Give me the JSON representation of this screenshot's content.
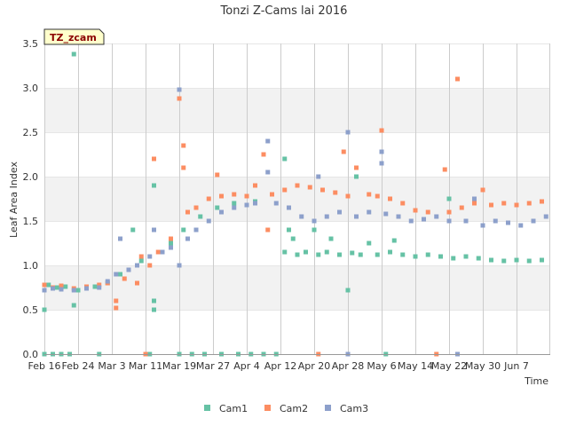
{
  "chart_data": {
    "type": "scatter",
    "title": "Tonzi Z-Cams lai 2016",
    "badge": "TZ_zcam",
    "xlabel": "Time",
    "ylabel": "Leaf Area Index",
    "ylim": [
      0,
      3.5
    ],
    "yticks": [
      "0.0",
      "0.5",
      "1.0",
      "1.5",
      "2.0",
      "2.5",
      "3.0",
      "3.5"
    ],
    "xlim": [
      "2016-02-16",
      "2016-06-15"
    ],
    "xticks": [
      {
        "label": "Feb 16",
        "date": "2016-02-16"
      },
      {
        "label": "Feb 24",
        "date": "2016-02-24"
      },
      {
        "label": "Mar 3",
        "date": "2016-03-03"
      },
      {
        "label": "Mar 11",
        "date": "2016-03-11"
      },
      {
        "label": "Mar 19",
        "date": "2016-03-19"
      },
      {
        "label": "Mar 27",
        "date": "2016-03-27"
      },
      {
        "label": "Apr 4",
        "date": "2016-04-04"
      },
      {
        "label": "Apr 12",
        "date": "2016-04-12"
      },
      {
        "label": "Apr 20",
        "date": "2016-04-20"
      },
      {
        "label": "Apr 28",
        "date": "2016-04-28"
      },
      {
        "label": "May 6",
        "date": "2016-05-06"
      },
      {
        "label": "May 14",
        "date": "2016-05-14"
      },
      {
        "label": "May 22",
        "date": "2016-05-22"
      },
      {
        "label": "May 30",
        "date": "2016-05-30"
      },
      {
        "label": "Jun 7",
        "date": "2016-06-07"
      }
    ],
    "grid": true,
    "legend_position": "bottom",
    "series": [
      {
        "name": "Cam1",
        "color": "#66c2a5",
        "points": [
          [
            "2016-02-16",
            0.0
          ],
          [
            "2016-02-16",
            0.5
          ],
          [
            "2016-02-17",
            0.78
          ],
          [
            "2016-02-18",
            0.0
          ],
          [
            "2016-02-19",
            0.75
          ],
          [
            "2016-02-20",
            0.0
          ],
          [
            "2016-02-21",
            0.76
          ],
          [
            "2016-02-22",
            0.0
          ],
          [
            "2016-02-23",
            3.38
          ],
          [
            "2016-02-23",
            0.55
          ],
          [
            "2016-02-24",
            0.72
          ],
          [
            "2016-02-26",
            0.74
          ],
          [
            "2016-02-28",
            0.76
          ],
          [
            "2016-02-29",
            0.0
          ],
          [
            "2016-03-02",
            0.8
          ],
          [
            "2016-03-05",
            0.9
          ],
          [
            "2016-03-08",
            1.4
          ],
          [
            "2016-03-10",
            1.05
          ],
          [
            "2016-03-11",
            0.0
          ],
          [
            "2016-03-12",
            0.0
          ],
          [
            "2016-03-13",
            1.9
          ],
          [
            "2016-03-13",
            0.5
          ],
          [
            "2016-03-13",
            0.6
          ],
          [
            "2016-03-15",
            1.15
          ],
          [
            "2016-03-17",
            1.25
          ],
          [
            "2016-03-19",
            0.0
          ],
          [
            "2016-03-20",
            1.4
          ],
          [
            "2016-03-22",
            0.0
          ],
          [
            "2016-03-24",
            1.55
          ],
          [
            "2016-03-25",
            0.0
          ],
          [
            "2016-03-28",
            1.65
          ],
          [
            "2016-03-29",
            0.0
          ],
          [
            "2016-04-01",
            1.7
          ],
          [
            "2016-04-02",
            0.0
          ],
          [
            "2016-04-05",
            0.0
          ],
          [
            "2016-04-06",
            1.72
          ],
          [
            "2016-04-08",
            0.0
          ],
          [
            "2016-04-11",
            0.0
          ],
          [
            "2016-04-13",
            2.2
          ],
          [
            "2016-04-13",
            1.15
          ],
          [
            "2016-04-14",
            1.4
          ],
          [
            "2016-04-15",
            1.3
          ],
          [
            "2016-04-16",
            1.12
          ],
          [
            "2016-04-18",
            1.15
          ],
          [
            "2016-04-20",
            1.4
          ],
          [
            "2016-04-21",
            1.12
          ],
          [
            "2016-04-23",
            1.15
          ],
          [
            "2016-04-24",
            1.3
          ],
          [
            "2016-04-26",
            1.12
          ],
          [
            "2016-04-28",
            0.72
          ],
          [
            "2016-04-29",
            1.14
          ],
          [
            "2016-04-30",
            2.0
          ],
          [
            "2016-05-01",
            1.12
          ],
          [
            "2016-05-03",
            1.25
          ],
          [
            "2016-05-05",
            1.12
          ],
          [
            "2016-05-07",
            0.0
          ],
          [
            "2016-05-08",
            1.15
          ],
          [
            "2016-05-09",
            1.28
          ],
          [
            "2016-05-11",
            1.12
          ],
          [
            "2016-05-14",
            1.1
          ],
          [
            "2016-05-17",
            1.12
          ],
          [
            "2016-05-20",
            1.1
          ],
          [
            "2016-05-22",
            1.75
          ],
          [
            "2016-05-23",
            1.08
          ],
          [
            "2016-05-26",
            1.1
          ],
          [
            "2016-05-29",
            1.08
          ],
          [
            "2016-06-01",
            1.06
          ],
          [
            "2016-06-04",
            1.05
          ],
          [
            "2016-06-07",
            1.06
          ],
          [
            "2016-06-10",
            1.05
          ],
          [
            "2016-06-13",
            1.06
          ]
        ]
      },
      {
        "name": "Cam2",
        "color": "#fc8d62",
        "points": [
          [
            "2016-02-16",
            0.78
          ],
          [
            "2016-02-18",
            0.75
          ],
          [
            "2016-02-20",
            0.77
          ],
          [
            "2016-02-23",
            0.74
          ],
          [
            "2016-02-26",
            0.76
          ],
          [
            "2016-02-29",
            0.78
          ],
          [
            "2016-03-02",
            0.8
          ],
          [
            "2016-03-04",
            0.6
          ],
          [
            "2016-03-04",
            0.52
          ],
          [
            "2016-03-06",
            0.85
          ],
          [
            "2016-03-09",
            0.8
          ],
          [
            "2016-03-10",
            1.1
          ],
          [
            "2016-03-11",
            0.0
          ],
          [
            "2016-03-12",
            1.0
          ],
          [
            "2016-03-13",
            2.2
          ],
          [
            "2016-03-14",
            1.15
          ],
          [
            "2016-03-17",
            1.3
          ],
          [
            "2016-03-19",
            2.88
          ],
          [
            "2016-03-20",
            2.35
          ],
          [
            "2016-03-20",
            2.1
          ],
          [
            "2016-03-21",
            1.6
          ],
          [
            "2016-03-23",
            1.65
          ],
          [
            "2016-03-26",
            1.75
          ],
          [
            "2016-03-28",
            2.02
          ],
          [
            "2016-03-29",
            1.78
          ],
          [
            "2016-04-01",
            1.8
          ],
          [
            "2016-04-04",
            1.78
          ],
          [
            "2016-04-06",
            1.9
          ],
          [
            "2016-04-08",
            2.25
          ],
          [
            "2016-04-09",
            1.4
          ],
          [
            "2016-04-10",
            1.8
          ],
          [
            "2016-04-13",
            1.85
          ],
          [
            "2016-04-16",
            1.9
          ],
          [
            "2016-04-19",
            1.88
          ],
          [
            "2016-04-21",
            0.0
          ],
          [
            "2016-04-22",
            1.85
          ],
          [
            "2016-04-25",
            1.82
          ],
          [
            "2016-04-27",
            2.28
          ],
          [
            "2016-04-28",
            1.78
          ],
          [
            "2016-04-30",
            2.1
          ],
          [
            "2016-05-03",
            1.8
          ],
          [
            "2016-05-05",
            1.78
          ],
          [
            "2016-05-06",
            2.52
          ],
          [
            "2016-05-08",
            1.75
          ],
          [
            "2016-05-11",
            1.7
          ],
          [
            "2016-05-14",
            1.62
          ],
          [
            "2016-05-17",
            1.6
          ],
          [
            "2016-05-19",
            0.0
          ],
          [
            "2016-05-21",
            2.08
          ],
          [
            "2016-05-22",
            1.6
          ],
          [
            "2016-05-24",
            3.1
          ],
          [
            "2016-05-25",
            1.65
          ],
          [
            "2016-05-28",
            1.7
          ],
          [
            "2016-05-30",
            1.85
          ],
          [
            "2016-06-01",
            1.68
          ],
          [
            "2016-06-04",
            1.7
          ],
          [
            "2016-06-07",
            1.68
          ],
          [
            "2016-06-10",
            1.7
          ],
          [
            "2016-06-13",
            1.72
          ]
        ]
      },
      {
        "name": "Cam3",
        "color": "#8da0cb",
        "points": [
          [
            "2016-02-16",
            0.72
          ],
          [
            "2016-02-18",
            0.74
          ],
          [
            "2016-02-20",
            0.73
          ],
          [
            "2016-02-23",
            0.72
          ],
          [
            "2016-02-26",
            0.74
          ],
          [
            "2016-02-29",
            0.75
          ],
          [
            "2016-03-02",
            0.82
          ],
          [
            "2016-03-04",
            0.9
          ],
          [
            "2016-03-05",
            1.3
          ],
          [
            "2016-03-07",
            0.95
          ],
          [
            "2016-03-09",
            1.0
          ],
          [
            "2016-03-12",
            1.1
          ],
          [
            "2016-03-13",
            1.4
          ],
          [
            "2016-03-15",
            1.15
          ],
          [
            "2016-03-17",
            1.2
          ],
          [
            "2016-03-19",
            2.98
          ],
          [
            "2016-03-19",
            1.0
          ],
          [
            "2016-03-21",
            1.3
          ],
          [
            "2016-03-23",
            1.4
          ],
          [
            "2016-03-26",
            1.5
          ],
          [
            "2016-03-29",
            1.6
          ],
          [
            "2016-04-01",
            1.65
          ],
          [
            "2016-04-04",
            1.68
          ],
          [
            "2016-04-06",
            1.7
          ],
          [
            "2016-04-09",
            2.4
          ],
          [
            "2016-04-09",
            2.05
          ],
          [
            "2016-04-11",
            1.7
          ],
          [
            "2016-04-14",
            1.65
          ],
          [
            "2016-04-17",
            1.55
          ],
          [
            "2016-04-20",
            1.5
          ],
          [
            "2016-04-21",
            2.0
          ],
          [
            "2016-04-23",
            1.55
          ],
          [
            "2016-04-26",
            1.6
          ],
          [
            "2016-04-28",
            2.5
          ],
          [
            "2016-04-28",
            0.0
          ],
          [
            "2016-04-30",
            1.55
          ],
          [
            "2016-05-03",
            1.6
          ],
          [
            "2016-05-06",
            2.28
          ],
          [
            "2016-05-06",
            2.15
          ],
          [
            "2016-05-07",
            1.58
          ],
          [
            "2016-05-10",
            1.55
          ],
          [
            "2016-05-13",
            1.5
          ],
          [
            "2016-05-16",
            1.52
          ],
          [
            "2016-05-19",
            1.55
          ],
          [
            "2016-05-22",
            1.5
          ],
          [
            "2016-05-24",
            0.0
          ],
          [
            "2016-05-26",
            1.5
          ],
          [
            "2016-05-28",
            1.75
          ],
          [
            "2016-05-30",
            1.45
          ],
          [
            "2016-06-02",
            1.5
          ],
          [
            "2016-06-05",
            1.48
          ],
          [
            "2016-06-08",
            1.45
          ],
          [
            "2016-06-11",
            1.5
          ],
          [
            "2016-06-14",
            1.55
          ]
        ]
      }
    ]
  }
}
